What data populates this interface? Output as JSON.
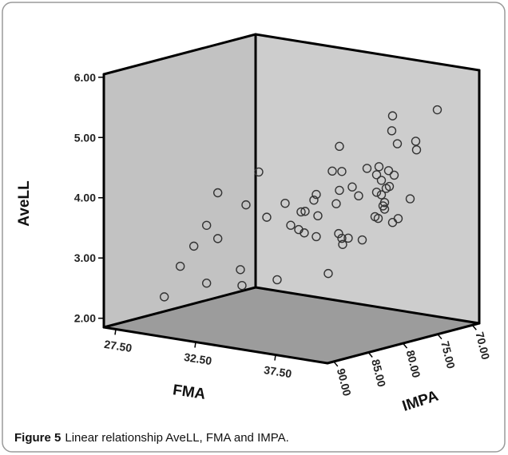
{
  "chart_data": {
    "type": "scatter3d",
    "x_label": "FMA",
    "y_label": "AveLL",
    "z_label": "IMPA",
    "marker_color": "#333333",
    "xlim": [
      26.75,
      40.75
    ],
    "ylim": [
      1.85,
      6.05
    ],
    "zlim": [
      90.9,
      69.0
    ],
    "xticks": [
      {
        "value": 27.5,
        "label": "27.50"
      },
      {
        "value": 32.5,
        "label": "32.50"
      },
      {
        "value": 37.5,
        "label": "37.50"
      }
    ],
    "yticks": [
      {
        "value": 2,
        "label": "2.00"
      },
      {
        "value": 3,
        "label": "3.00"
      },
      {
        "value": 4,
        "label": "4.00"
      },
      {
        "value": 5,
        "label": "5.00"
      },
      {
        "value": 6,
        "label": "6.00"
      }
    ],
    "zticks": [
      {
        "value": 90,
        "label": "90.00"
      },
      {
        "value": 85,
        "label": "85.00"
      },
      {
        "value": 80,
        "label": "80.00"
      },
      {
        "value": 75,
        "label": "75.00"
      },
      {
        "value": 70,
        "label": "70.00"
      }
    ],
    "x": [
      27.54,
      28.54,
      29.39,
      30.19,
      30.19,
      30.89,
      30.89,
      30.57,
      30.67,
      30.92,
      31.72,
      32.22,
      32.87,
      33.37,
      33.72,
      34.22,
      34.62,
      34.37,
      35.17,
      35.32,
      35.42,
      34.57,
      35.32,
      36.07,
      36.32,
      36.57,
      36.77,
      36.77,
      36.92,
      36.72,
      36.92,
      36.97,
      37.32,
      37.57,
      37.97,
      35.81,
      36.11,
      36.71,
      36.86,
      36.61,
      36.71,
      37.01,
      37.21,
      36.81,
      37.01,
      37.21,
      37.51,
      37.31,
      37.71,
      37.11,
      37.71,
      38.01,
      37.46,
      37.66,
      37.81,
      38.81,
      39.16,
      39.21,
      40.51,
      38.06
    ],
    "y": [
      2.18,
      2.73,
      3.1,
      2.52,
      3.48,
      4.05,
      3.29,
      2.64,
      2.38,
      3.73,
      4.31,
      3.58,
      2.57,
      3.86,
      3.51,
      3.46,
      3.78,
      3.76,
      3.99,
      4.09,
      3.74,
      3.42,
      3.39,
      2.81,
      4.52,
      3.99,
      4.95,
      4.22,
      4.54,
      3.5,
      3.43,
      3.33,
      3.45,
      4.31,
      4.18,
      3.19,
      4.39,
      4.02,
      4.45,
      3.61,
      4.31,
      4.23,
      3.87,
      3.59,
      3.99,
      3.76,
      4.15,
      4.11,
      5.33,
      3.81,
      3.56,
      4.88,
      4.41,
      5.08,
      4.35,
      4.0,
      4.97,
      4.83,
      5.55,
      3.64
    ],
    "z": [
      84,
      84,
      84,
      84,
      84,
      84,
      84,
      80,
      80,
      80,
      80,
      80,
      80,
      80,
      80,
      80,
      80,
      80,
      80,
      80,
      80,
      80,
      80,
      80,
      80,
      80,
      80,
      80,
      80,
      80,
      80,
      80,
      80,
      80,
      80,
      74.5,
      74.5,
      74.5,
      74.5,
      74.5,
      74.5,
      74.5,
      74.5,
      74.5,
      74.5,
      74.5,
      74.5,
      74.5,
      74.5,
      74.5,
      74.5,
      74.5,
      74.5,
      74.5,
      74.5,
      74.5,
      74.5,
      74.5,
      74.5,
      74.5
    ]
  },
  "caption": {
    "label": "Figure 5",
    "text": "Linear relationship AveLL, FMA and IMPA."
  }
}
